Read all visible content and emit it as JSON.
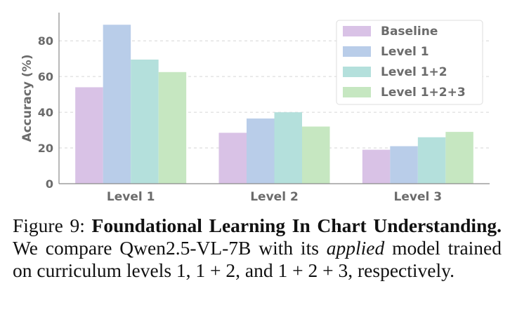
{
  "chart_data": {
    "type": "bar",
    "categories": [
      "Level 1",
      "Level 2",
      "Level 3"
    ],
    "series": [
      {
        "name": "Baseline",
        "values": [
          54,
          28.5,
          19
        ],
        "color": "#d9c2e6"
      },
      {
        "name": "Level 1",
        "values": [
          89,
          36.5,
          21
        ],
        "color": "#b9cde9"
      },
      {
        "name": "Level 1+2",
        "values": [
          69.5,
          40,
          26
        ],
        "color": "#b4e0dc"
      },
      {
        "name": "Level 1+2+3",
        "values": [
          62.5,
          32,
          29
        ],
        "color": "#c6e7c1"
      }
    ],
    "title": "",
    "xlabel": "",
    "ylabel": "Accuracy (%)",
    "ylim": [
      0,
      95
    ],
    "yticks": [
      0,
      20,
      40,
      60,
      80
    ],
    "grid": "horizontal dashed",
    "legend_position": "top-right"
  },
  "caption": {
    "label": "Figure 9:",
    "bold_title": "Foundational Learning In Chart Understanding.",
    "text_before_italic": "We compare Qwen2.5-VL-7B with its",
    "italic_word": "applied",
    "text_after_italic": "model trained on curriculum levels 1, 1 + 2, and 1 + 2 + 3, respectively."
  }
}
